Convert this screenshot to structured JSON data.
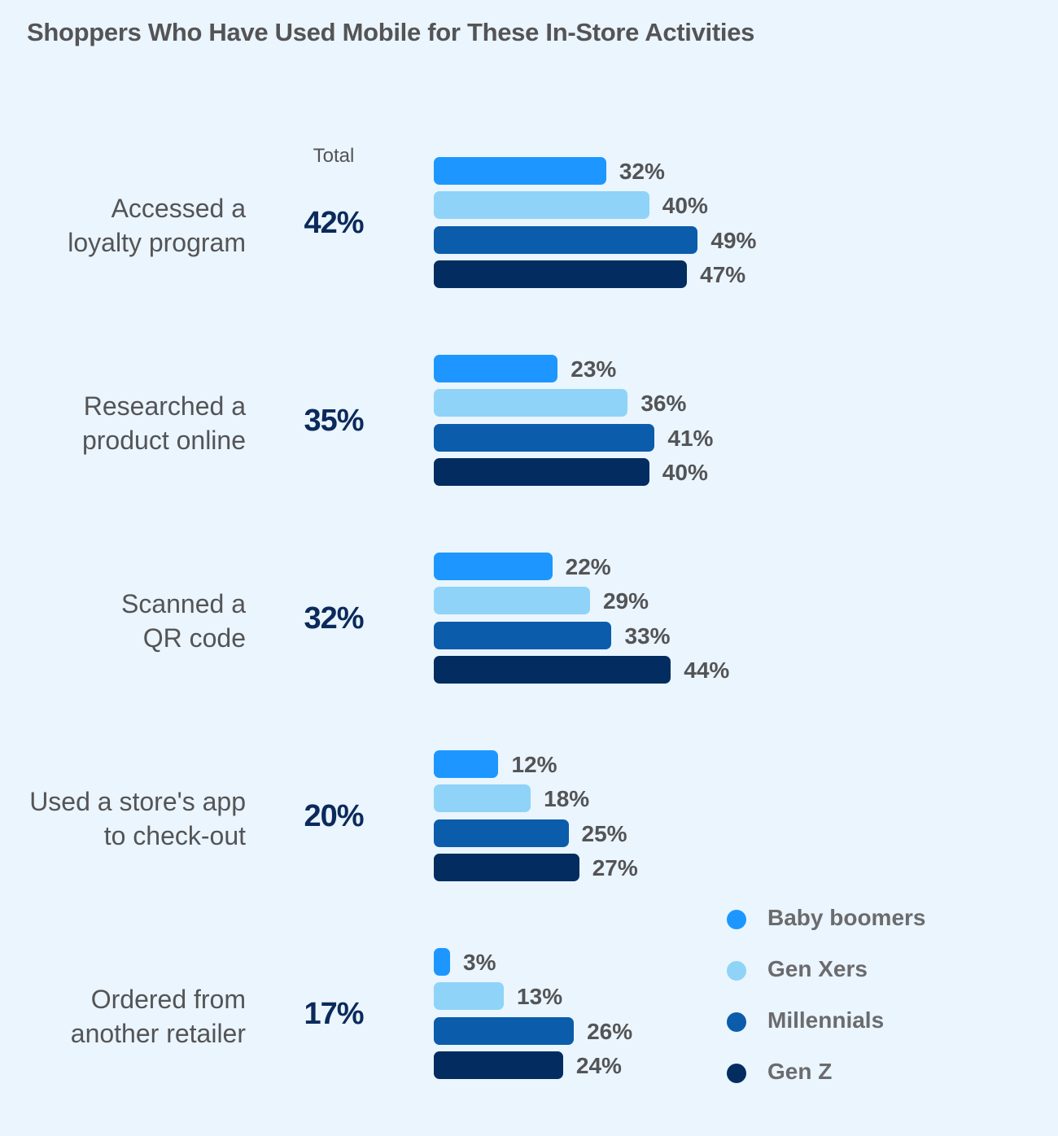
{
  "chart_data": {
    "type": "bar",
    "orientation": "horizontal",
    "title": "Shoppers Who Have Used Mobile for These In-Store Activities",
    "total_header": "Total",
    "categories": [
      "Accessed a loyalty program",
      "Researched a product online",
      "Scanned a QR code",
      "Used a store's app to check-out",
      "Ordered from another retailer"
    ],
    "category_lines": [
      [
        "Accessed a",
        "loyalty program"
      ],
      [
        "Researched a",
        "product online"
      ],
      [
        "Scanned a",
        "QR code"
      ],
      [
        "Used a store's app",
        "to check-out"
      ],
      [
        "Ordered from",
        "another retailer"
      ]
    ],
    "totals": [
      "42%",
      "35%",
      "32%",
      "20%",
      "17%"
    ],
    "series": [
      {
        "name": "Baby boomers",
        "color": "#1d97ff",
        "values": [
          32,
          23,
          22,
          12,
          3
        ]
      },
      {
        "name": "Gen Xers",
        "color": "#8fd3f8",
        "values": [
          40,
          36,
          29,
          18,
          13
        ]
      },
      {
        "name": "Millennials",
        "color": "#0b5cab",
        "values": [
          49,
          41,
          33,
          25,
          26
        ]
      },
      {
        "name": "Gen Z",
        "color": "#032d60",
        "values": [
          47,
          40,
          44,
          27,
          24
        ]
      }
    ],
    "value_suffix": "%",
    "xlim": [
      0,
      100
    ],
    "grid": false,
    "legend_position": "bottom-right"
  }
}
